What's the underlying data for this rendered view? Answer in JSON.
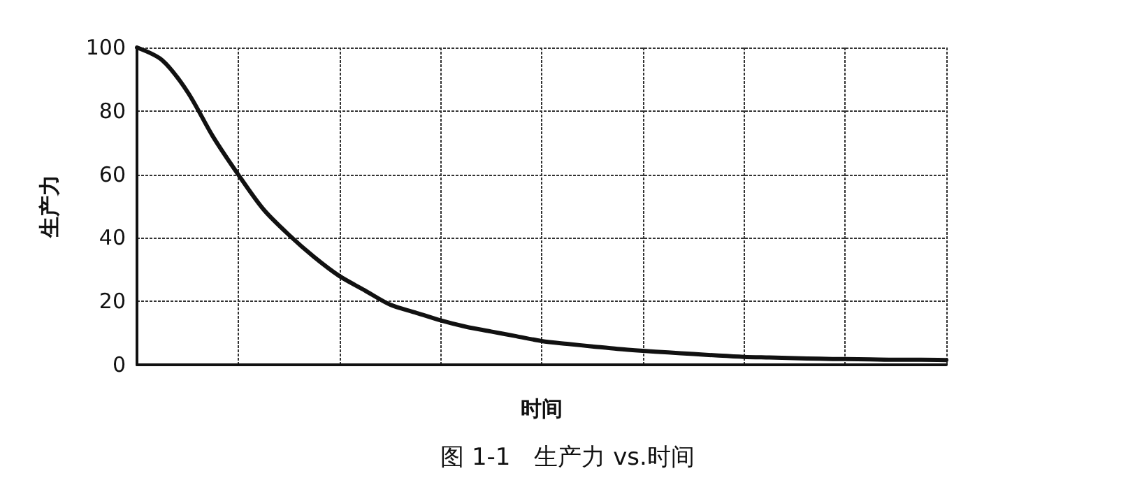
{
  "chart_data": {
    "type": "line",
    "title": "图 1-1　生产力 vs.时间",
    "xlabel": "时间",
    "ylabel": "生产力",
    "categories": [
      null,
      null,
      null,
      null,
      null,
      null,
      null,
      null,
      null,
      null,
      null,
      null,
      null,
      null,
      null,
      null,
      null,
      null,
      null,
      null,
      null,
      null,
      null,
      null,
      null,
      null,
      null,
      null,
      null,
      null,
      null,
      null,
      null
    ],
    "series": [
      {
        "color": "#111111",
        "values": [
          100,
          96,
          86,
          72,
          60,
          49,
          41,
          34,
          28,
          23.5,
          19,
          16.5,
          14,
          12,
          10.5,
          9,
          7.5,
          6.6,
          5.8,
          5,
          4.4,
          3.9,
          3.4,
          2.9,
          2.5,
          2.3,
          2.1,
          1.9,
          1.8,
          1.7,
          1.6,
          1.6,
          1.5
        ]
      }
    ],
    "ylim": [
      0,
      100
    ],
    "yticks": [
      0,
      20,
      40,
      60,
      80,
      100
    ],
    "grid": true,
    "tick_labels": "y",
    "marker": "none",
    "line_style": "solid"
  }
}
